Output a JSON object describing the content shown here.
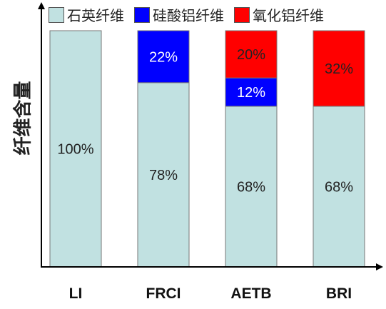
{
  "chart_data": {
    "type": "bar",
    "stacked": true,
    "categories": [
      "LI",
      "FRCI",
      "AETB",
      "BRI"
    ],
    "series": [
      {
        "name": "石英纤维",
        "color": "#c1e1e1",
        "values": [
          100,
          78,
          68,
          68
        ],
        "labels": [
          "100%",
          "78%",
          "68%",
          "68%"
        ]
      },
      {
        "name": "硅酸铝纤维",
        "color": "#0000ff",
        "values": [
          0,
          22,
          12,
          0
        ],
        "labels": [
          "",
          "22%",
          "12%",
          ""
        ]
      },
      {
        "name": "氧化铝纤维",
        "color": "#ff0000",
        "values": [
          0,
          0,
          20,
          32
        ],
        "labels": [
          "",
          "",
          "20%",
          "32%"
        ]
      }
    ],
    "ylabel": "纤维含量",
    "xlabel": "",
    "ylim": [
      0,
      100
    ],
    "legend_position": "top",
    "grid": false
  }
}
